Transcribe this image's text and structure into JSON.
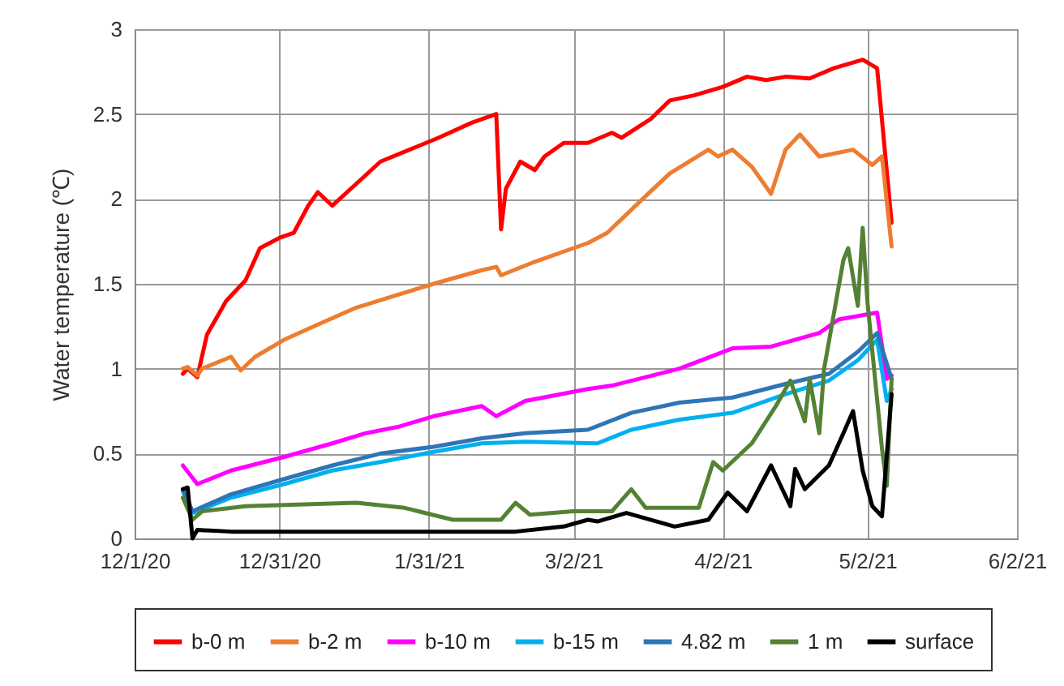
{
  "chart_data": {
    "type": "line",
    "ylabel": "Water temperature (℃)",
    "xlim": [
      "2020-12-01",
      "2021-06-02"
    ],
    "xticks": [
      {
        "value": "2020-12-01",
        "label": "12/1/20"
      },
      {
        "value": "2020-12-31",
        "label": "12/31/20"
      },
      {
        "value": "2021-01-31",
        "label": "1/31/21"
      },
      {
        "value": "2021-03-02",
        "label": "3/2/21"
      },
      {
        "value": "2021-04-02",
        "label": "4/2/21"
      },
      {
        "value": "2021-05-02",
        "label": "5/2/21"
      },
      {
        "value": "2021-06-02",
        "label": "6/2/21"
      }
    ],
    "ylim": [
      0,
      3
    ],
    "yticks": [
      0,
      0.5,
      1,
      1.5,
      2,
      2.5,
      3
    ],
    "grid": true,
    "legend": "bottom",
    "marker": "none",
    "line_style": "solid",
    "series": [
      {
        "name": "b-0 m",
        "color": "#ff0000",
        "x": [
          "2020-12-11",
          "2020-12-12",
          "2020-12-14",
          "2020-12-16",
          "2020-12-20",
          "2020-12-24",
          "2020-12-27",
          "2020-12-31",
          "2021-01-03",
          "2021-01-06",
          "2021-01-08",
          "2021-01-11",
          "2021-01-16",
          "2021-01-21",
          "2021-01-27",
          "2021-02-02",
          "2021-02-09",
          "2021-02-14",
          "2021-02-15",
          "2021-02-16",
          "2021-02-19",
          "2021-02-22",
          "2021-02-24",
          "2021-02-28",
          "2021-03-05",
          "2021-03-10",
          "2021-03-12",
          "2021-03-18",
          "2021-03-22",
          "2021-03-27",
          "2021-04-02",
          "2021-04-07",
          "2021-04-11",
          "2021-04-15",
          "2021-04-20",
          "2021-04-25",
          "2021-05-01",
          "2021-05-04",
          "2021-05-07"
        ],
        "values": [
          0.97,
          1.0,
          0.95,
          1.2,
          1.4,
          1.52,
          1.71,
          1.77,
          1.8,
          1.96,
          2.04,
          1.96,
          2.09,
          2.22,
          2.29,
          2.36,
          2.45,
          2.5,
          1.82,
          2.06,
          2.22,
          2.17,
          2.25,
          2.33,
          2.33,
          2.39,
          2.36,
          2.47,
          2.58,
          2.61,
          2.66,
          2.72,
          2.7,
          2.72,
          2.71,
          2.77,
          2.82,
          2.77,
          1.86
        ]
      },
      {
        "name": "b-2 m",
        "color": "#ed7d31",
        "x": [
          "2020-12-11",
          "2020-12-12",
          "2020-12-14",
          "2020-12-15",
          "2020-12-21",
          "2020-12-23",
          "2020-12-26",
          "2021-01-01",
          "2021-01-08",
          "2021-01-16",
          "2021-01-24",
          "2021-02-01",
          "2021-02-11",
          "2021-02-14",
          "2021-02-15",
          "2021-02-22",
          "2021-03-05",
          "2021-03-09",
          "2021-03-16",
          "2021-03-22",
          "2021-03-30",
          "2021-04-01",
          "2021-04-04",
          "2021-04-08",
          "2021-04-12",
          "2021-04-15",
          "2021-04-18",
          "2021-04-22",
          "2021-04-29",
          "2021-05-03",
          "2021-05-05",
          "2021-05-07"
        ],
        "values": [
          1.0,
          1.01,
          0.96,
          1.0,
          1.07,
          0.99,
          1.07,
          1.17,
          1.26,
          1.36,
          1.43,
          1.5,
          1.58,
          1.6,
          1.55,
          1.63,
          1.74,
          1.8,
          1.99,
          2.15,
          2.29,
          2.25,
          2.29,
          2.19,
          2.03,
          2.29,
          2.38,
          2.25,
          2.29,
          2.2,
          2.25,
          1.72
        ]
      },
      {
        "name": "b-10 m",
        "color": "#ff00ff",
        "x": [
          "2020-12-11",
          "2020-12-14",
          "2020-12-21",
          "2021-01-01",
          "2021-01-11",
          "2021-01-18",
          "2021-01-25",
          "2021-02-01",
          "2021-02-11",
          "2021-02-14",
          "2021-02-20",
          "2021-03-05",
          "2021-03-10",
          "2021-03-24",
          "2021-04-04",
          "2021-04-12",
          "2021-04-22",
          "2021-04-26",
          "2021-05-04",
          "2021-05-06",
          "2021-05-07"
        ],
        "values": [
          0.43,
          0.32,
          0.4,
          0.48,
          0.56,
          0.62,
          0.66,
          0.72,
          0.78,
          0.72,
          0.81,
          0.88,
          0.9,
          1.0,
          1.12,
          1.13,
          1.21,
          1.29,
          1.33,
          0.94,
          0.96
        ]
      },
      {
        "name": "b-15 m",
        "color": "#00b0f0",
        "x": [
          "2020-12-11",
          "2020-12-13",
          "2020-12-21",
          "2021-01-01",
          "2021-01-11",
          "2021-01-21",
          "2021-02-01",
          "2021-02-11",
          "2021-02-20",
          "2021-03-07",
          "2021-03-14",
          "2021-03-24",
          "2021-04-04",
          "2021-04-15",
          "2021-04-24",
          "2021-04-30",
          "2021-05-04",
          "2021-05-06",
          "2021-05-07"
        ],
        "values": [
          0.28,
          0.15,
          0.24,
          0.32,
          0.4,
          0.45,
          0.51,
          0.56,
          0.57,
          0.56,
          0.64,
          0.7,
          0.74,
          0.85,
          0.93,
          1.05,
          1.17,
          0.81,
          0.88
        ]
      },
      {
        "name": "4.82 m",
        "color": "#2e75b6",
        "x": [
          "2020-12-11",
          "2020-12-13",
          "2020-12-21",
          "2021-01-01",
          "2021-01-11",
          "2021-01-21",
          "2021-02-01",
          "2021-02-11",
          "2021-02-20",
          "2021-03-05",
          "2021-03-14",
          "2021-03-24",
          "2021-04-04",
          "2021-04-15",
          "2021-04-24",
          "2021-04-30",
          "2021-05-04",
          "2021-05-07"
        ],
        "values": [
          0.29,
          0.16,
          0.26,
          0.35,
          0.43,
          0.5,
          0.54,
          0.59,
          0.62,
          0.64,
          0.74,
          0.8,
          0.83,
          0.91,
          0.97,
          1.1,
          1.21,
          0.94
        ]
      },
      {
        "name": "1 m",
        "color": "#548235",
        "x": [
          "2020-12-11",
          "2020-12-13",
          "2020-12-15",
          "2020-12-24",
          "2021-01-16",
          "2021-01-26",
          "2021-02-05",
          "2021-02-15",
          "2021-02-18",
          "2021-02-21",
          "2021-03-02",
          "2021-03-10",
          "2021-03-14",
          "2021-03-17",
          "2021-03-28",
          "2021-03-31",
          "2021-04-02",
          "2021-04-08",
          "2021-04-13",
          "2021-04-16",
          "2021-04-19",
          "2021-04-20",
          "2021-04-22",
          "2021-04-23",
          "2021-04-27",
          "2021-04-28",
          "2021-04-30",
          "2021-05-01",
          "2021-05-02",
          "2021-05-05",
          "2021-05-06",
          "2021-05-07"
        ],
        "values": [
          0.24,
          0.11,
          0.16,
          0.19,
          0.21,
          0.18,
          0.11,
          0.11,
          0.21,
          0.14,
          0.16,
          0.16,
          0.29,
          0.18,
          0.18,
          0.45,
          0.4,
          0.56,
          0.78,
          0.93,
          0.69,
          0.94,
          0.62,
          1.0,
          1.64,
          1.71,
          1.37,
          1.83,
          1.39,
          0.53,
          0.31,
          0.94
        ]
      },
      {
        "name": "surface",
        "color": "#000000",
        "x": [
          "2020-12-11",
          "2020-12-12",
          "2020-12-13",
          "2020-12-14",
          "2020-12-21",
          "2021-02-18",
          "2021-02-28",
          "2021-03-05",
          "2021-03-07",
          "2021-03-13",
          "2021-03-23",
          "2021-03-30",
          "2021-04-03",
          "2021-04-07",
          "2021-04-12",
          "2021-04-16",
          "2021-04-17",
          "2021-04-19",
          "2021-04-24",
          "2021-04-27",
          "2021-04-29",
          "2021-05-01",
          "2021-05-03",
          "2021-05-05",
          "2021-05-07"
        ],
        "values": [
          0.29,
          0.3,
          0.0,
          0.05,
          0.04,
          0.04,
          0.07,
          0.11,
          0.1,
          0.15,
          0.07,
          0.11,
          0.27,
          0.16,
          0.43,
          0.19,
          0.41,
          0.29,
          0.43,
          0.62,
          0.75,
          0.4,
          0.19,
          0.13,
          0.85
        ]
      }
    ]
  }
}
